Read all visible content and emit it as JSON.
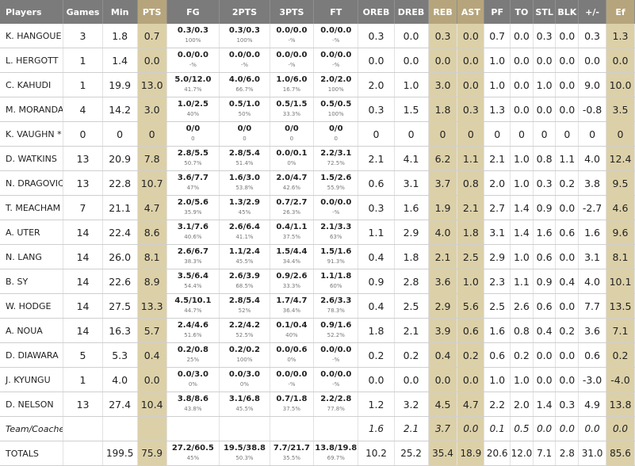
{
  "headers": [
    "Players",
    "Games",
    "Min",
    "PTS",
    "FG",
    "2PTS",
    "3PTS",
    "FT",
    "OREB",
    "DREB",
    "REB",
    "AST",
    "PF",
    "TO",
    "STL",
    "BLK",
    "+/-",
    "Ef"
  ],
  "players": [
    {
      "name": "K. HANGOUE",
      "games": "3",
      "min": "1.8",
      "pts": "0.7",
      "fg": "0.3/0.3",
      "fg_pct": "100%",
      "two": "0.3/0.3",
      "two_pct": "100%",
      "three": "0.0/0.0",
      "three_pct": "-%",
      "ft": "0.0/0.0",
      "ft_pct": "-%",
      "oreb": "0.3",
      "dreb": "0.0",
      "reb": "0.3",
      "ast": "0.0",
      "pf": "0.7",
      "to": "0.0",
      "stl": "0.3",
      "blk": "0.0",
      "pm": "0.3",
      "ef": "1.3"
    },
    {
      "name": "L. HERGOTT",
      "games": "1",
      "min": "1.4",
      "pts": "0.0",
      "fg": "0.0/0.0",
      "fg_pct": "-%",
      "two": "0.0/0.0",
      "two_pct": "-%",
      "three": "0.0/0.0",
      "three_pct": "-%",
      "ft": "0.0/0.0",
      "ft_pct": "-%",
      "oreb": "0.0",
      "dreb": "0.0",
      "reb": "0.0",
      "ast": "0.0",
      "pf": "1.0",
      "to": "0.0",
      "stl": "0.0",
      "blk": "0.0",
      "pm": "0.0",
      "ef": "0.0"
    },
    {
      "name": "C. KAHUDI",
      "games": "1",
      "min": "19.9",
      "pts": "13.0",
      "fg": "5.0/12.0",
      "fg_pct": "41.7%",
      "two": "4.0/6.0",
      "two_pct": "66.7%",
      "three": "1.0/6.0",
      "three_pct": "16.7%",
      "ft": "2.0/2.0",
      "ft_pct": "100%",
      "oreb": "2.0",
      "dreb": "1.0",
      "reb": "3.0",
      "ast": "0.0",
      "pf": "1.0",
      "to": "0.0",
      "stl": "1.0",
      "blk": "0.0",
      "pm": "9.0",
      "ef": "10.0"
    },
    {
      "name": "M. MORANDAIS",
      "games": "4",
      "min": "14.2",
      "pts": "3.0",
      "fg": "1.0/2.5",
      "fg_pct": "40%",
      "two": "0.5/1.0",
      "two_pct": "50%",
      "three": "0.5/1.5",
      "three_pct": "33.3%",
      "ft": "0.5/0.5",
      "ft_pct": "100%",
      "oreb": "0.3",
      "dreb": "1.5",
      "reb": "1.8",
      "ast": "0.3",
      "pf": "1.3",
      "to": "0.0",
      "stl": "0.0",
      "blk": "0.0",
      "pm": "-0.8",
      "ef": "3.5"
    },
    {
      "name": "K. VAUGHN *",
      "games": "0",
      "min": "0",
      "pts": "0",
      "fg": "0/0",
      "fg_pct": "0",
      "two": "0/0",
      "two_pct": "0",
      "three": "0/0",
      "three_pct": "0",
      "ft": "0/0",
      "ft_pct": "0",
      "oreb": "0",
      "dreb": "0",
      "reb": "0",
      "ast": "0",
      "pf": "0",
      "to": "0",
      "stl": "0",
      "blk": "0",
      "pm": "0",
      "ef": "0"
    },
    {
      "name": "D. WATKINS",
      "games": "13",
      "min": "20.9",
      "pts": "7.8",
      "fg": "2.8/5.5",
      "fg_pct": "50.7%",
      "two": "2.8/5.4",
      "two_pct": "51.4%",
      "three": "0.0/0.1",
      "three_pct": "0%",
      "ft": "2.2/3.1",
      "ft_pct": "72.5%",
      "oreb": "2.1",
      "dreb": "4.1",
      "reb": "6.2",
      "ast": "1.1",
      "pf": "2.1",
      "to": "1.0",
      "stl": "0.8",
      "blk": "1.1",
      "pm": "4.0",
      "ef": "12.4"
    },
    {
      "name": "N. DRAGOVIC",
      "games": "13",
      "min": "22.8",
      "pts": "10.7",
      "fg": "3.6/7.7",
      "fg_pct": "47%",
      "two": "1.6/3.0",
      "two_pct": "53.8%",
      "three": "2.0/4.7",
      "three_pct": "42.6%",
      "ft": "1.5/2.6",
      "ft_pct": "55.9%",
      "oreb": "0.6",
      "dreb": "3.1",
      "reb": "3.7",
      "ast": "0.8",
      "pf": "2.0",
      "to": "1.0",
      "stl": "0.3",
      "blk": "0.2",
      "pm": "3.8",
      "ef": "9.5"
    },
    {
      "name": "T. MEACHAM",
      "games": "7",
      "min": "21.1",
      "pts": "4.7",
      "fg": "2.0/5.6",
      "fg_pct": "35.9%",
      "two": "1.3/2.9",
      "two_pct": "45%",
      "three": "0.7/2.7",
      "three_pct": "26.3%",
      "ft": "0.0/0.0",
      "ft_pct": "-%",
      "oreb": "0.3",
      "dreb": "1.6",
      "reb": "1.9",
      "ast": "2.1",
      "pf": "2.7",
      "to": "1.4",
      "stl": "0.9",
      "blk": "0.0",
      "pm": "-2.7",
      "ef": "4.6"
    },
    {
      "name": "A. UTER",
      "games": "14",
      "min": "22.4",
      "pts": "8.6",
      "fg": "3.1/7.6",
      "fg_pct": "40.6%",
      "two": "2.6/6.4",
      "two_pct": "41.1%",
      "three": "0.4/1.1",
      "three_pct": "37.5%",
      "ft": "2.1/3.3",
      "ft_pct": "63%",
      "oreb": "1.1",
      "dreb": "2.9",
      "reb": "4.0",
      "ast": "1.8",
      "pf": "3.1",
      "to": "1.4",
      "stl": "1.6",
      "blk": "0.6",
      "pm": "1.6",
      "ef": "9.6"
    },
    {
      "name": "N. LANG",
      "games": "14",
      "min": "26.0",
      "pts": "8.1",
      "fg": "2.6/6.7",
      "fg_pct": "38.3%",
      "two": "1.1/2.4",
      "two_pct": "45.5%",
      "three": "1.5/4.4",
      "three_pct": "34.4%",
      "ft": "1.5/1.6",
      "ft_pct": "91.3%",
      "oreb": "0.4",
      "dreb": "1.8",
      "reb": "2.1",
      "ast": "2.5",
      "pf": "2.9",
      "to": "1.0",
      "stl": "0.6",
      "blk": "0.0",
      "pm": "3.1",
      "ef": "8.1"
    },
    {
      "name": "B. SY",
      "games": "14",
      "min": "22.6",
      "pts": "8.9",
      "fg": "3.5/6.4",
      "fg_pct": "54.4%",
      "two": "2.6/3.9",
      "two_pct": "68.5%",
      "three": "0.9/2.6",
      "three_pct": "33.3%",
      "ft": "1.1/1.8",
      "ft_pct": "60%",
      "oreb": "0.9",
      "dreb": "2.8",
      "reb": "3.6",
      "ast": "1.0",
      "pf": "2.3",
      "to": "1.1",
      "stl": "0.9",
      "blk": "0.4",
      "pm": "4.0",
      "ef": "10.1"
    },
    {
      "name": "W. HODGE",
      "games": "14",
      "min": "27.5",
      "pts": "13.3",
      "fg": "4.5/10.1",
      "fg_pct": "44.7%",
      "two": "2.8/5.4",
      "two_pct": "52%",
      "three": "1.7/4.7",
      "three_pct": "36.4%",
      "ft": "2.6/3.3",
      "ft_pct": "78.3%",
      "oreb": "0.4",
      "dreb": "2.5",
      "reb": "2.9",
      "ast": "5.6",
      "pf": "2.5",
      "to": "2.6",
      "stl": "0.6",
      "blk": "0.0",
      "pm": "7.7",
      "ef": "13.5"
    },
    {
      "name": "A. NOUA",
      "games": "14",
      "min": "16.3",
      "pts": "5.7",
      "fg": "2.4/4.6",
      "fg_pct": "51.6%",
      "two": "2.2/4.2",
      "two_pct": "52.5%",
      "three": "0.1/0.4",
      "three_pct": "40%",
      "ft": "0.9/1.6",
      "ft_pct": "52.2%",
      "oreb": "1.8",
      "dreb": "2.1",
      "reb": "3.9",
      "ast": "0.6",
      "pf": "1.6",
      "to": "0.8",
      "stl": "0.4",
      "blk": "0.2",
      "pm": "3.6",
      "ef": "7.1"
    },
    {
      "name": "D. DIAWARA",
      "games": "5",
      "min": "5.3",
      "pts": "0.4",
      "fg": "0.2/0.8",
      "fg_pct": "25%",
      "two": "0.2/0.2",
      "two_pct": "100%",
      "three": "0.0/0.6",
      "three_pct": "0%",
      "ft": "0.0/0.0",
      "ft_pct": "-%",
      "oreb": "0.2",
      "dreb": "0.2",
      "reb": "0.4",
      "ast": "0.2",
      "pf": "0.6",
      "to": "0.2",
      "stl": "0.0",
      "blk": "0.0",
      "pm": "0.6",
      "ef": "0.2"
    },
    {
      "name": "J. KYUNGU",
      "games": "1",
      "min": "4.0",
      "pts": "0.0",
      "fg": "0.0/3.0",
      "fg_pct": "0%",
      "two": "0.0/3.0",
      "two_pct": "0%",
      "three": "0.0/0.0",
      "three_pct": "-%",
      "ft": "0.0/0.0",
      "ft_pct": "-%",
      "oreb": "0.0",
      "dreb": "0.0",
      "reb": "0.0",
      "ast": "0.0",
      "pf": "1.0",
      "to": "1.0",
      "stl": "0.0",
      "blk": "0.0",
      "pm": "-3.0",
      "ef": "-4.0"
    },
    {
      "name": "D. NELSON",
      "games": "13",
      "min": "27.4",
      "pts": "10.4",
      "fg": "3.8/8.6",
      "fg_pct": "43.8%",
      "two": "3.1/6.8",
      "two_pct": "45.5%",
      "three": "0.7/1.8",
      "three_pct": "37.5%",
      "ft": "2.2/2.8",
      "ft_pct": "77.8%",
      "oreb": "1.2",
      "dreb": "3.2",
      "reb": "4.5",
      "ast": "4.7",
      "pf": "2.2",
      "to": "2.0",
      "stl": "1.4",
      "blk": "0.3",
      "pm": "4.9",
      "ef": "13.8"
    }
  ],
  "team": {
    "name": "Team/Coaches",
    "oreb": "1.6",
    "dreb": "2.1",
    "reb": "3.7",
    "ast": "0.0",
    "pf": "0.1",
    "to": "0.5",
    "stl": "0.0",
    "blk": "0.0",
    "pm": "0.0",
    "ef": "0.0"
  },
  "totals": {
    "name": "TOTALS",
    "min": "199.5",
    "pts": "75.9",
    "fg": "27.2/60.5",
    "fg_pct": "45%",
    "two": "19.5/38.8",
    "two_pct": "50.3%",
    "three": "7.7/21.7",
    "three_pct": "35.5%",
    "ft": "13.8/19.8",
    "ft_pct": "69.7%",
    "oreb": "10.2",
    "dreb": "25.2",
    "reb": "35.4",
    "ast": "18.9",
    "pf": "20.6",
    "to": "12.0",
    "stl": "7.1",
    "blk": "2.8",
    "pm": "31.0",
    "ef": "85.6"
  },
  "colors": {
    "header_bg": "#7b7b7b",
    "highlight_header": "#b6a57c",
    "highlight_cell": "#dcd0a8"
  }
}
